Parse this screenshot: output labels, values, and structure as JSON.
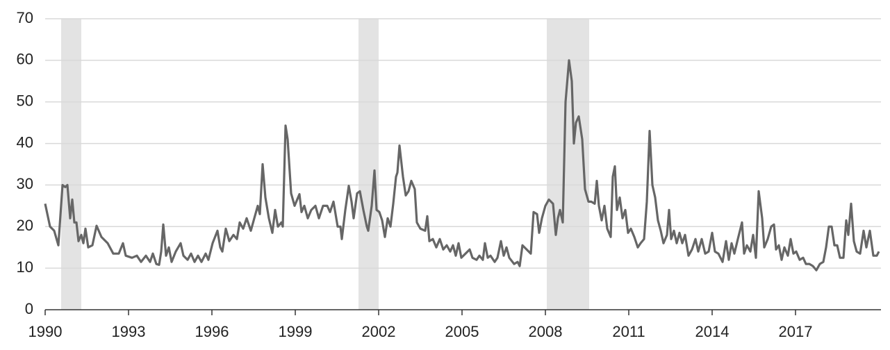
{
  "chart_data": {
    "type": "line",
    "color": "#666666",
    "shade_color": "#e3e3e3",
    "grid": true,
    "xlim": [
      1990,
      2020
    ],
    "ylim": [
      0,
      70
    ],
    "xticks": [
      1990,
      1993,
      1996,
      1999,
      2002,
      2005,
      2008,
      2011,
      2014,
      2017
    ],
    "yticks": [
      0,
      10,
      20,
      30,
      40,
      50,
      60,
      70
    ],
    "shaded_ranges": [
      [
        1990.575,
        1991.3
      ],
      [
        2001.275,
        2002.0
      ],
      [
        2008.05,
        2009.575
      ]
    ],
    "x": [
      1990.0,
      1990.175,
      1990.325,
      1990.475,
      1990.625,
      1990.725,
      1990.8,
      1990.9,
      1990.975,
      1991.05,
      1991.125,
      1991.2,
      1991.3,
      1991.375,
      1991.45,
      1991.55,
      1991.7,
      1991.85,
      1992.025,
      1992.25,
      1992.45,
      1992.65,
      1992.8,
      1992.9,
      1993.125,
      1993.3,
      1993.45,
      1993.625,
      1993.775,
      1993.875,
      1994.0,
      1994.1,
      1994.175,
      1994.25,
      1994.35,
      1994.45,
      1994.55,
      1994.7,
      1994.875,
      1994.975,
      1995.125,
      1995.25,
      1995.375,
      1995.5,
      1995.625,
      1995.775,
      1995.875,
      1996.025,
      1996.2,
      1996.3,
      1996.375,
      1996.5,
      1996.625,
      1996.775,
      1996.9,
      1997.0,
      1997.125,
      1997.25,
      1997.4,
      1997.525,
      1997.65,
      1997.725,
      1997.825,
      1997.925,
      1998.05,
      1998.175,
      1998.275,
      1998.375,
      1998.5,
      1998.55,
      1998.65,
      1998.725,
      1998.85,
      1998.975,
      1999.15,
      1999.225,
      1999.325,
      1999.45,
      1999.575,
      1999.725,
      1999.85,
      2000.0,
      2000.15,
      2000.25,
      2000.375,
      2000.525,
      2000.625,
      2000.675,
      2000.8,
      2000.925,
      2001.025,
      2001.1,
      2001.225,
      2001.325,
      2001.45,
      2001.575,
      2001.625,
      2001.75,
      2001.85,
      2001.925,
      2002.025,
      2002.125,
      2002.225,
      2002.325,
      2002.425,
      2002.525,
      2002.625,
      2002.675,
      2002.75,
      2002.875,
      2002.975,
      2003.075,
      2003.175,
      2003.3,
      2003.375,
      2003.5,
      2003.675,
      2003.75,
      2003.825,
      2003.95,
      2004.075,
      2004.2,
      2004.325,
      2004.45,
      2004.575,
      2004.675,
      2004.775,
      2004.875,
      2004.975,
      2005.125,
      2005.275,
      2005.375,
      2005.525,
      2005.625,
      2005.75,
      2005.825,
      2005.925,
      2006.025,
      2006.175,
      2006.275,
      2006.4,
      2006.5,
      2006.6,
      2006.7,
      2006.875,
      2007.0,
      2007.075,
      2007.175,
      2007.325,
      2007.475,
      2007.575,
      2007.7,
      2007.775,
      2007.875,
      2008.0,
      2008.125,
      2008.275,
      2008.375,
      2008.45,
      2008.525,
      2008.625,
      2008.725,
      2008.85,
      2008.95,
      2009.025,
      2009.1,
      2009.2,
      2009.325,
      2009.425,
      2009.55,
      2009.65,
      2009.775,
      2009.85,
      2009.925,
      2010.025,
      2010.125,
      2010.225,
      2010.35,
      2010.425,
      2010.5,
      2010.575,
      2010.675,
      2010.775,
      2010.875,
      2010.975,
      2011.075,
      2011.2,
      2011.325,
      2011.425,
      2011.55,
      2011.65,
      2011.75,
      2011.85,
      2011.95,
      2012.05,
      2012.15,
      2012.25,
      2012.375,
      2012.45,
      2012.525,
      2012.625,
      2012.725,
      2012.825,
      2012.925,
      2013.025,
      2013.15,
      2013.275,
      2013.4,
      2013.5,
      2013.625,
      2013.75,
      2013.875,
      2014.0,
      2014.1,
      2014.225,
      2014.375,
      2014.5,
      2014.6,
      2014.7,
      2014.8,
      2014.925,
      2015.075,
      2015.15,
      2015.25,
      2015.375,
      2015.475,
      2015.575,
      2015.675,
      2015.8,
      2015.875,
      2016.0,
      2016.125,
      2016.225,
      2016.3,
      2016.4,
      2016.5,
      2016.6,
      2016.725,
      2016.825,
      2016.925,
      2017.025,
      2017.15,
      2017.275,
      2017.375,
      2017.5,
      2017.625,
      2017.75,
      2017.875,
      2018.0,
      2018.1,
      2018.2,
      2018.3,
      2018.4,
      2018.5,
      2018.6,
      2018.725,
      2018.825,
      2018.9,
      2019.0,
      2019.1,
      2019.2,
      2019.325,
      2019.45,
      2019.55,
      2019.675,
      2019.8,
      2019.925,
      2020.0
    ],
    "values": [
      25.5,
      20,
      19,
      15.5,
      30,
      29.5,
      30,
      22,
      26.5,
      21,
      21,
      16.5,
      18,
      16,
      19.5,
      15,
      15.5,
      20.2,
      17.5,
      16,
      13.5,
      13.5,
      16,
      13,
      12.5,
      13,
      11.5,
      13,
      11.5,
      13.5,
      11,
      10.8,
      14,
      20.5,
      13,
      15,
      11.5,
      14,
      16,
      13,
      12,
      13.5,
      11.5,
      13,
      11.5,
      13.5,
      12,
      16,
      19,
      15,
      14,
      19.5,
      16.5,
      18,
      17,
      21,
      19.5,
      22,
      19,
      22,
      25,
      23,
      35,
      27,
      22,
      18.5,
      24,
      20,
      21,
      20,
      44.3,
      41,
      28,
      25,
      27.8,
      23.5,
      25,
      22,
      24,
      25,
      22,
      25,
      25,
      23.5,
      26,
      20,
      20,
      17,
      24,
      29.8,
      26,
      22,
      28,
      28.5,
      24,
      20,
      19,
      25,
      33.5,
      24,
      23.5,
      21.5,
      17.5,
      22,
      20,
      25.5,
      32,
      33,
      39.5,
      32,
      27.5,
      28.5,
      31,
      29,
      21,
      19.5,
      19,
      22.5,
      16.5,
      17,
      15,
      17,
      14.5,
      15.5,
      14,
      15.5,
      13,
      16,
      12.5,
      13.5,
      14.5,
      12.5,
      12,
      13,
      12,
      16,
      12.5,
      13,
      11.5,
      12.5,
      16.5,
      13,
      15,
      12.5,
      11,
      11.5,
      10.5,
      15.5,
      14.5,
      13.5,
      23.5,
      23,
      18.5,
      22,
      25,
      26.5,
      25.5,
      18,
      22,
      24,
      21,
      50,
      60,
      55,
      40,
      45,
      46.5,
      41,
      29,
      26,
      26,
      25.5,
      31,
      25,
      21.5,
      25,
      19.5,
      17.5,
      32,
      34.5,
      24,
      27,
      22,
      24,
      18.5,
      19.5,
      17.5,
      15,
      16,
      17,
      26,
      43,
      30,
      27,
      21.5,
      19,
      16,
      18,
      24,
      17,
      19,
      16,
      18.5,
      16,
      18,
      13,
      14.5,
      17,
      14,
      17,
      13.5,
      14,
      18.5,
      14,
      13.5,
      11.5,
      16.5,
      12,
      16,
      13.5,
      17,
      21,
      13.5,
      15.5,
      14,
      18,
      12.5,
      28.5,
      22,
      15,
      17,
      20,
      20.5,
      14.5,
      15.5,
      12,
      15,
      13,
      17,
      13.5,
      14,
      12,
      12.5,
      11,
      11,
      10.5,
      9.5,
      11,
      11.5,
      15,
      20,
      20,
      15.5,
      15.5,
      12.5,
      12.5,
      21.5,
      18,
      25.5,
      16.5,
      14,
      13.5,
      19,
      15,
      19,
      13,
      13,
      14
    ]
  }
}
